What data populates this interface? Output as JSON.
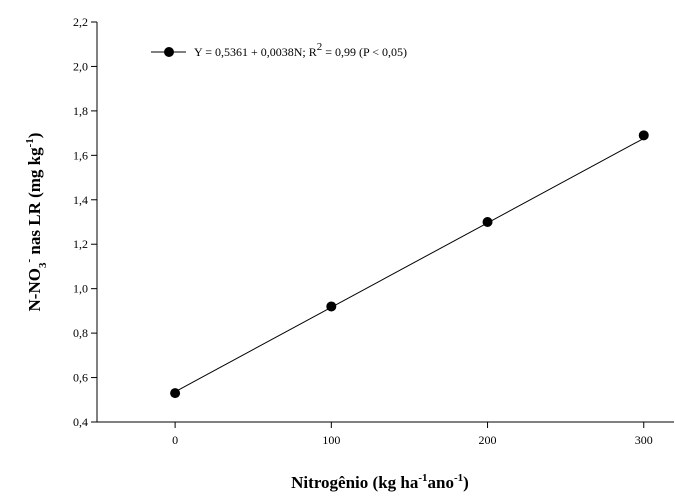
{
  "chart_data": {
    "type": "line",
    "x": [
      0,
      100,
      200,
      300
    ],
    "series": [
      {
        "name": "Y = 0,5361 + 0,0038N; R² = 0,99 (P < 0,05)",
        "values": [
          0.53,
          0.92,
          1.3,
          1.69
        ]
      }
    ],
    "fit": {
      "intercept": 0.5361,
      "slope": 0.0038
    },
    "xticks": [
      0,
      100,
      200,
      300
    ],
    "xtick_labels": [
      "0",
      "100",
      "200",
      "300"
    ],
    "yticks": [
      0.4,
      0.6,
      0.8,
      1.0,
      1.2,
      1.4,
      1.6,
      1.8,
      2.0,
      2.2
    ],
    "ytick_labels": [
      "0,4",
      "0,6",
      "0,8",
      "1,0",
      "1,2",
      "1,4",
      "1,6",
      "1,8",
      "2,0",
      "2,2"
    ],
    "xlim": [
      -50,
      320
    ],
    "ylim": [
      0.4,
      2.2
    ],
    "grid": false,
    "legend_position": "top-left",
    "xlabel": {
      "prefix": "Nitrogênio (kg ha",
      "sup1": "-1",
      "middle": "ano",
      "sup2": "-1",
      "suffix": ")"
    },
    "ylabel": {
      "prefix": "N-NO",
      "sub": "3",
      "sup": "-",
      "middle": " nas LR (mg kg",
      "sup2": "-1",
      "suffix": ")"
    },
    "legend": {
      "pre": "Y = 0,5361 + 0,0038N; R",
      "sup": "2",
      "post": " = 0,99 (P < 0,05)"
    }
  }
}
